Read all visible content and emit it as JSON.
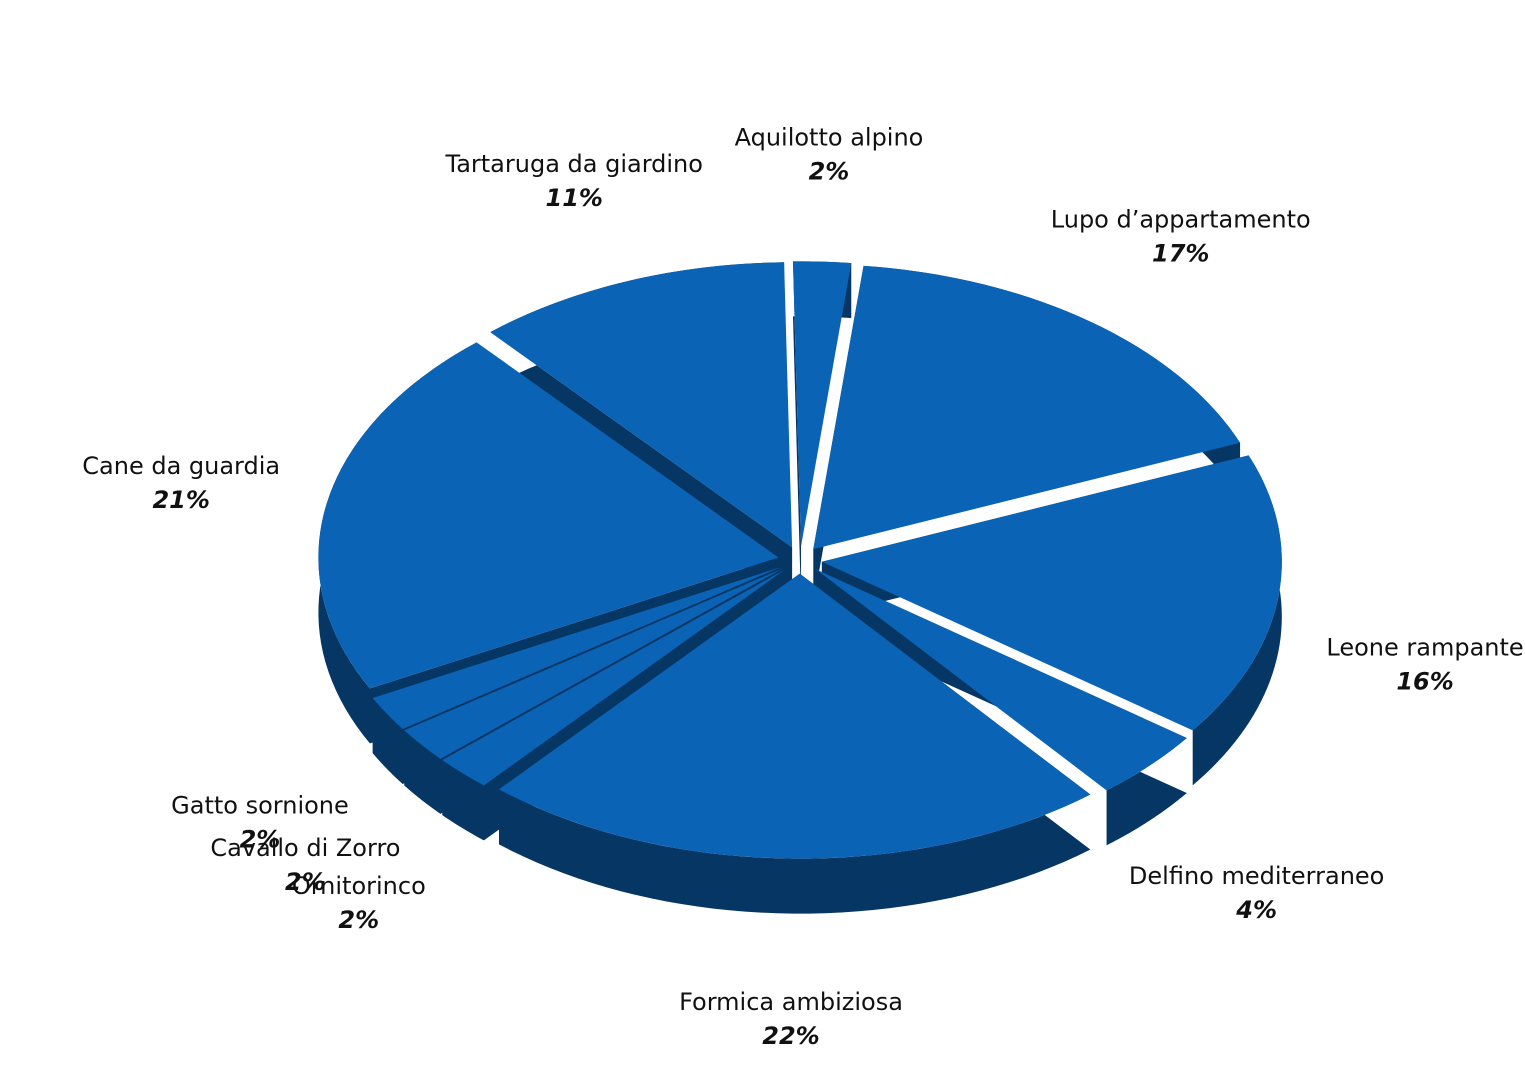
{
  "chart_data": {
    "type": "pie",
    "categories": [
      "Aquilotto alpino",
      "Lupo d’appartamento",
      "Leone rampante",
      "Delfino mediterraneo",
      "Formica ambiziosa",
      "Ornitorinco",
      "Cavallo di Zorro",
      "Gatto sornione",
      "Cane da guardia",
      "Tartaruga da giardino"
    ],
    "values": [
      2,
      17,
      16,
      4,
      22,
      2,
      2,
      2,
      21,
      11
    ],
    "value_labels": [
      "2%",
      "17%",
      "16%",
      "4%",
      "22%",
      "2%",
      "2%",
      "2%",
      "21%",
      "11%"
    ],
    "color": "#0a63b5"
  }
}
